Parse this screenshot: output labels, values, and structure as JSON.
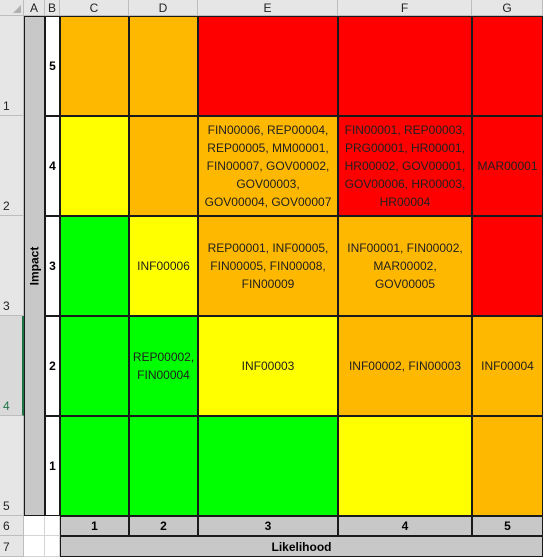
{
  "spreadsheet": {
    "column_headers": [
      "A",
      "B",
      "C",
      "D",
      "E",
      "F",
      "G"
    ],
    "row_headers": [
      "1",
      "2",
      "3",
      "4",
      "5",
      "6",
      "7"
    ],
    "selected_row": "4",
    "impact_label": "Impact",
    "likelihood_label": "Likelihood",
    "impact_levels": [
      "5",
      "4",
      "3",
      "2",
      "1"
    ],
    "likelihood_levels": [
      "1",
      "2",
      "3",
      "4",
      "5"
    ],
    "colors": {
      "red": "#ff0000",
      "orange": "#ffb800",
      "yellow": "#ffff00",
      "green": "#00ff00",
      "grey": "#c8c8c8",
      "selection": "#217346"
    },
    "matrix": {
      "r5": {
        "c1": "",
        "c2": "",
        "c3": "",
        "c4": "",
        "c5": ""
      },
      "r4": {
        "c1": "",
        "c2": "",
        "c3": "FIN00006, REP00004, REP00005, MM00001, FIN00007, GOV00002, GOV00003, GOV00004, GOV00007",
        "c4": "FIN00001, REP00003, PRG00001, HR00001, HR00002, GOV00001, GOV00006, HR00003, HR00004",
        "c5": "MAR00001"
      },
      "r3": {
        "c1": "",
        "c2": "INF00006",
        "c3": "REP00001, INF00005, FIN00005, FIN00008, FIN00009",
        "c4": "INF00001, FIN00002, MAR00002, GOV00005",
        "c5": ""
      },
      "r2": {
        "c1": "",
        "c2": "REP00002, FIN00004",
        "c3": "INF00003",
        "c4": "INF00002, FIN00003",
        "c5": "INF00004"
      },
      "r1": {
        "c1": "",
        "c2": "",
        "c3": "",
        "c4": "",
        "c5": ""
      }
    }
  }
}
